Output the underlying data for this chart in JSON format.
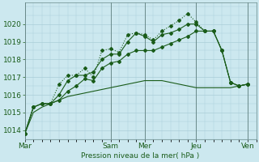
{
  "bg_color": "#cce8ef",
  "grid_color": "#aacdd8",
  "line_color": "#1a5c1a",
  "vline_color": "#6a8a8a",
  "xlabel": "Pression niveau de la mer( hPa )",
  "ylim": [
    1013.5,
    1021.2
  ],
  "yticks": [
    1014,
    1015,
    1016,
    1017,
    1018,
    1019,
    1020
  ],
  "day_labels": [
    "Mar",
    "Sam",
    "Mer",
    "Jeu",
    "Ven"
  ],
  "day_positions": [
    0,
    10,
    14,
    20,
    26
  ],
  "xlim": [
    0,
    27
  ],
  "series1_x": [
    0,
    1,
    2,
    3,
    4,
    5,
    6,
    7,
    8,
    9,
    10,
    11,
    12,
    13,
    14,
    15,
    16,
    17,
    18,
    19,
    20,
    21,
    22,
    23,
    24,
    25,
    26
  ],
  "series1_y": [
    1013.8,
    1015.3,
    1015.5,
    1015.5,
    1016.6,
    1017.1,
    1017.1,
    1017.5,
    1017.0,
    1018.5,
    1018.6,
    1018.4,
    1019.4,
    1019.5,
    1019.4,
    1019.1,
    1019.6,
    1019.9,
    1020.2,
    1020.6,
    1020.1,
    1019.6,
    1019.6,
    1018.5,
    1016.7,
    1016.5,
    1016.6
  ],
  "series2_x": [
    0,
    1,
    2,
    3,
    4,
    5,
    6,
    7,
    8,
    9,
    10,
    11,
    12,
    13,
    14,
    15,
    16,
    17,
    18,
    19,
    20,
    21,
    22,
    23,
    24,
    25,
    26
  ],
  "series2_y": [
    1013.8,
    1015.3,
    1015.5,
    1015.5,
    1016.0,
    1016.8,
    1017.1,
    1017.1,
    1017.3,
    1018.0,
    1018.3,
    1018.3,
    1019.0,
    1019.5,
    1019.3,
    1019.0,
    1019.4,
    1019.5,
    1019.7,
    1020.0,
    1020.0,
    1019.6,
    1019.6,
    1018.5,
    1016.7,
    1016.5,
    1016.6
  ],
  "series3_x": [
    0,
    1,
    2,
    3,
    4,
    5,
    6,
    7,
    8,
    9,
    10,
    11,
    12,
    13,
    14,
    15,
    16,
    17,
    18,
    19,
    20,
    21,
    22,
    23,
    24,
    25,
    26
  ],
  "series3_y": [
    1013.8,
    1015.3,
    1015.5,
    1015.5,
    1015.7,
    1016.2,
    1016.5,
    1016.9,
    1016.8,
    1017.5,
    1017.8,
    1017.9,
    1018.3,
    1018.5,
    1018.5,
    1018.5,
    1018.7,
    1018.9,
    1019.1,
    1019.3,
    1019.6,
    1019.6,
    1019.6,
    1018.5,
    1016.7,
    1016.5,
    1016.6
  ],
  "series4_x": [
    0,
    1,
    2,
    3,
    4,
    5,
    6,
    7,
    8,
    9,
    10,
    11,
    12,
    13,
    14,
    15,
    16,
    17,
    18,
    19,
    20,
    21,
    22,
    23,
    24,
    25,
    26
  ],
  "series4_y": [
    1013.8,
    1015.0,
    1015.3,
    1015.5,
    1015.7,
    1015.9,
    1016.0,
    1016.1,
    1016.2,
    1016.3,
    1016.4,
    1016.5,
    1016.6,
    1016.7,
    1016.8,
    1016.8,
    1016.8,
    1016.7,
    1016.6,
    1016.5,
    1016.4,
    1016.4,
    1016.4,
    1016.4,
    1016.4,
    1016.5,
    1016.6
  ],
  "vline_positions": [
    0,
    10,
    14,
    20,
    26
  ],
  "fontsize": 6.5,
  "markersize": 2.0
}
